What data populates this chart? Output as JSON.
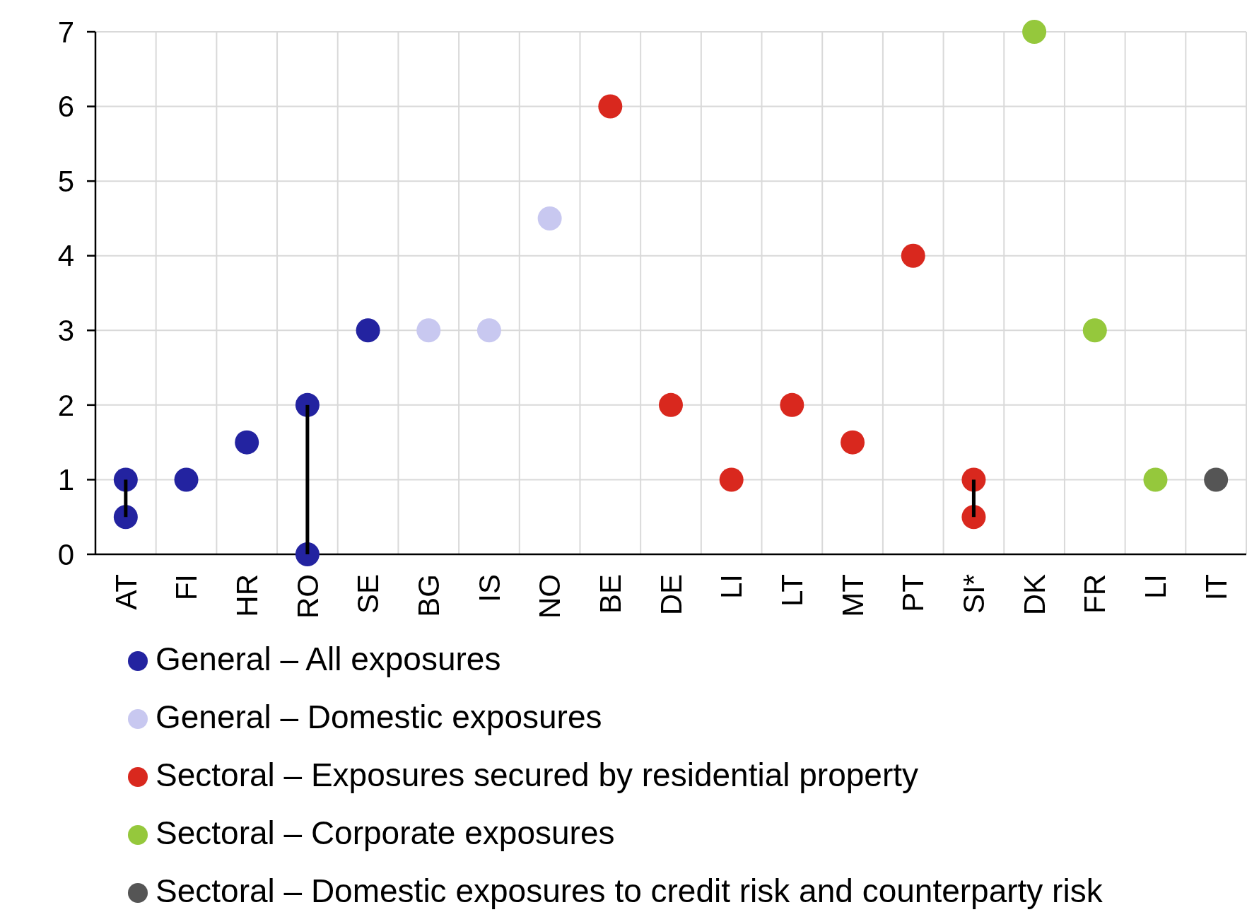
{
  "chart_data": {
    "type": "scatter",
    "categories": [
      "AT",
      "FI",
      "HR",
      "RO",
      "SE",
      "BG",
      "IS",
      "NO",
      "BE",
      "DE",
      "LI",
      "LT",
      "MT",
      "PT",
      "SI*",
      "DK",
      "FR",
      "LI",
      "IT"
    ],
    "series": [
      {
        "type": "bar",
        "color": "#000000",
        "values": [
          0.5,
          null,
          null,
          2,
          null,
          null,
          null,
          null,
          null,
          null,
          null,
          null,
          null,
          null,
          0.5,
          null,
          null,
          null,
          null
        ],
        "base": [
          0.5,
          null,
          null,
          0,
          null,
          null,
          null,
          null,
          null,
          null,
          null,
          null,
          null,
          null,
          0.5,
          null,
          null,
          null,
          null
        ]
      },
      {
        "name": "General – All exposures",
        "color": "#2323a0",
        "values": [
          1,
          1,
          1.5,
          2,
          3,
          null,
          null,
          null,
          null,
          null,
          null,
          null,
          null,
          null,
          null,
          null,
          null,
          null,
          null
        ]
      },
      {
        "color": "#2323a0",
        "values": [
          0.5,
          null,
          null,
          0,
          null,
          null,
          null,
          null,
          null,
          null,
          null,
          null,
          null,
          null,
          null,
          null,
          null,
          null,
          null
        ]
      },
      {
        "name": "General – Domestic exposures",
        "color": "#c8c8f0",
        "values": [
          null,
          null,
          null,
          null,
          null,
          3,
          3,
          4.5,
          null,
          null,
          null,
          null,
          null,
          null,
          null,
          null,
          null,
          null,
          null
        ]
      },
      {
        "name": "Sectoral – Exposures secured by residential property",
        "color": "#d9281e",
        "values": [
          null,
          null,
          null,
          null,
          null,
          null,
          null,
          null,
          6,
          2,
          1,
          2,
          1.5,
          4,
          1,
          null,
          null,
          null,
          null
        ]
      },
      {
        "color": "#d9281e",
        "values": [
          null,
          null,
          null,
          null,
          null,
          null,
          null,
          null,
          null,
          null,
          null,
          null,
          null,
          null,
          0.5,
          null,
          null,
          null,
          null
        ]
      },
      {
        "name": "Sectoral – Corporate exposures",
        "color": "#95c83c",
        "values": [
          null,
          null,
          null,
          null,
          null,
          null,
          null,
          null,
          null,
          null,
          null,
          null,
          null,
          null,
          null,
          7,
          3,
          1,
          null
        ]
      },
      {
        "name": "Sectoral – Domestic exposures to credit risk and counterparty risk",
        "color": "#555555",
        "values": [
          null,
          null,
          null,
          null,
          null,
          null,
          null,
          null,
          null,
          null,
          null,
          null,
          null,
          null,
          null,
          null,
          null,
          null,
          1
        ]
      }
    ],
    "ylim": [
      0,
      7
    ],
    "yticks": [
      0,
      1,
      2,
      3,
      4,
      5,
      6,
      7
    ],
    "grid": true,
    "legend": "bottom",
    "marker": "circle"
  }
}
